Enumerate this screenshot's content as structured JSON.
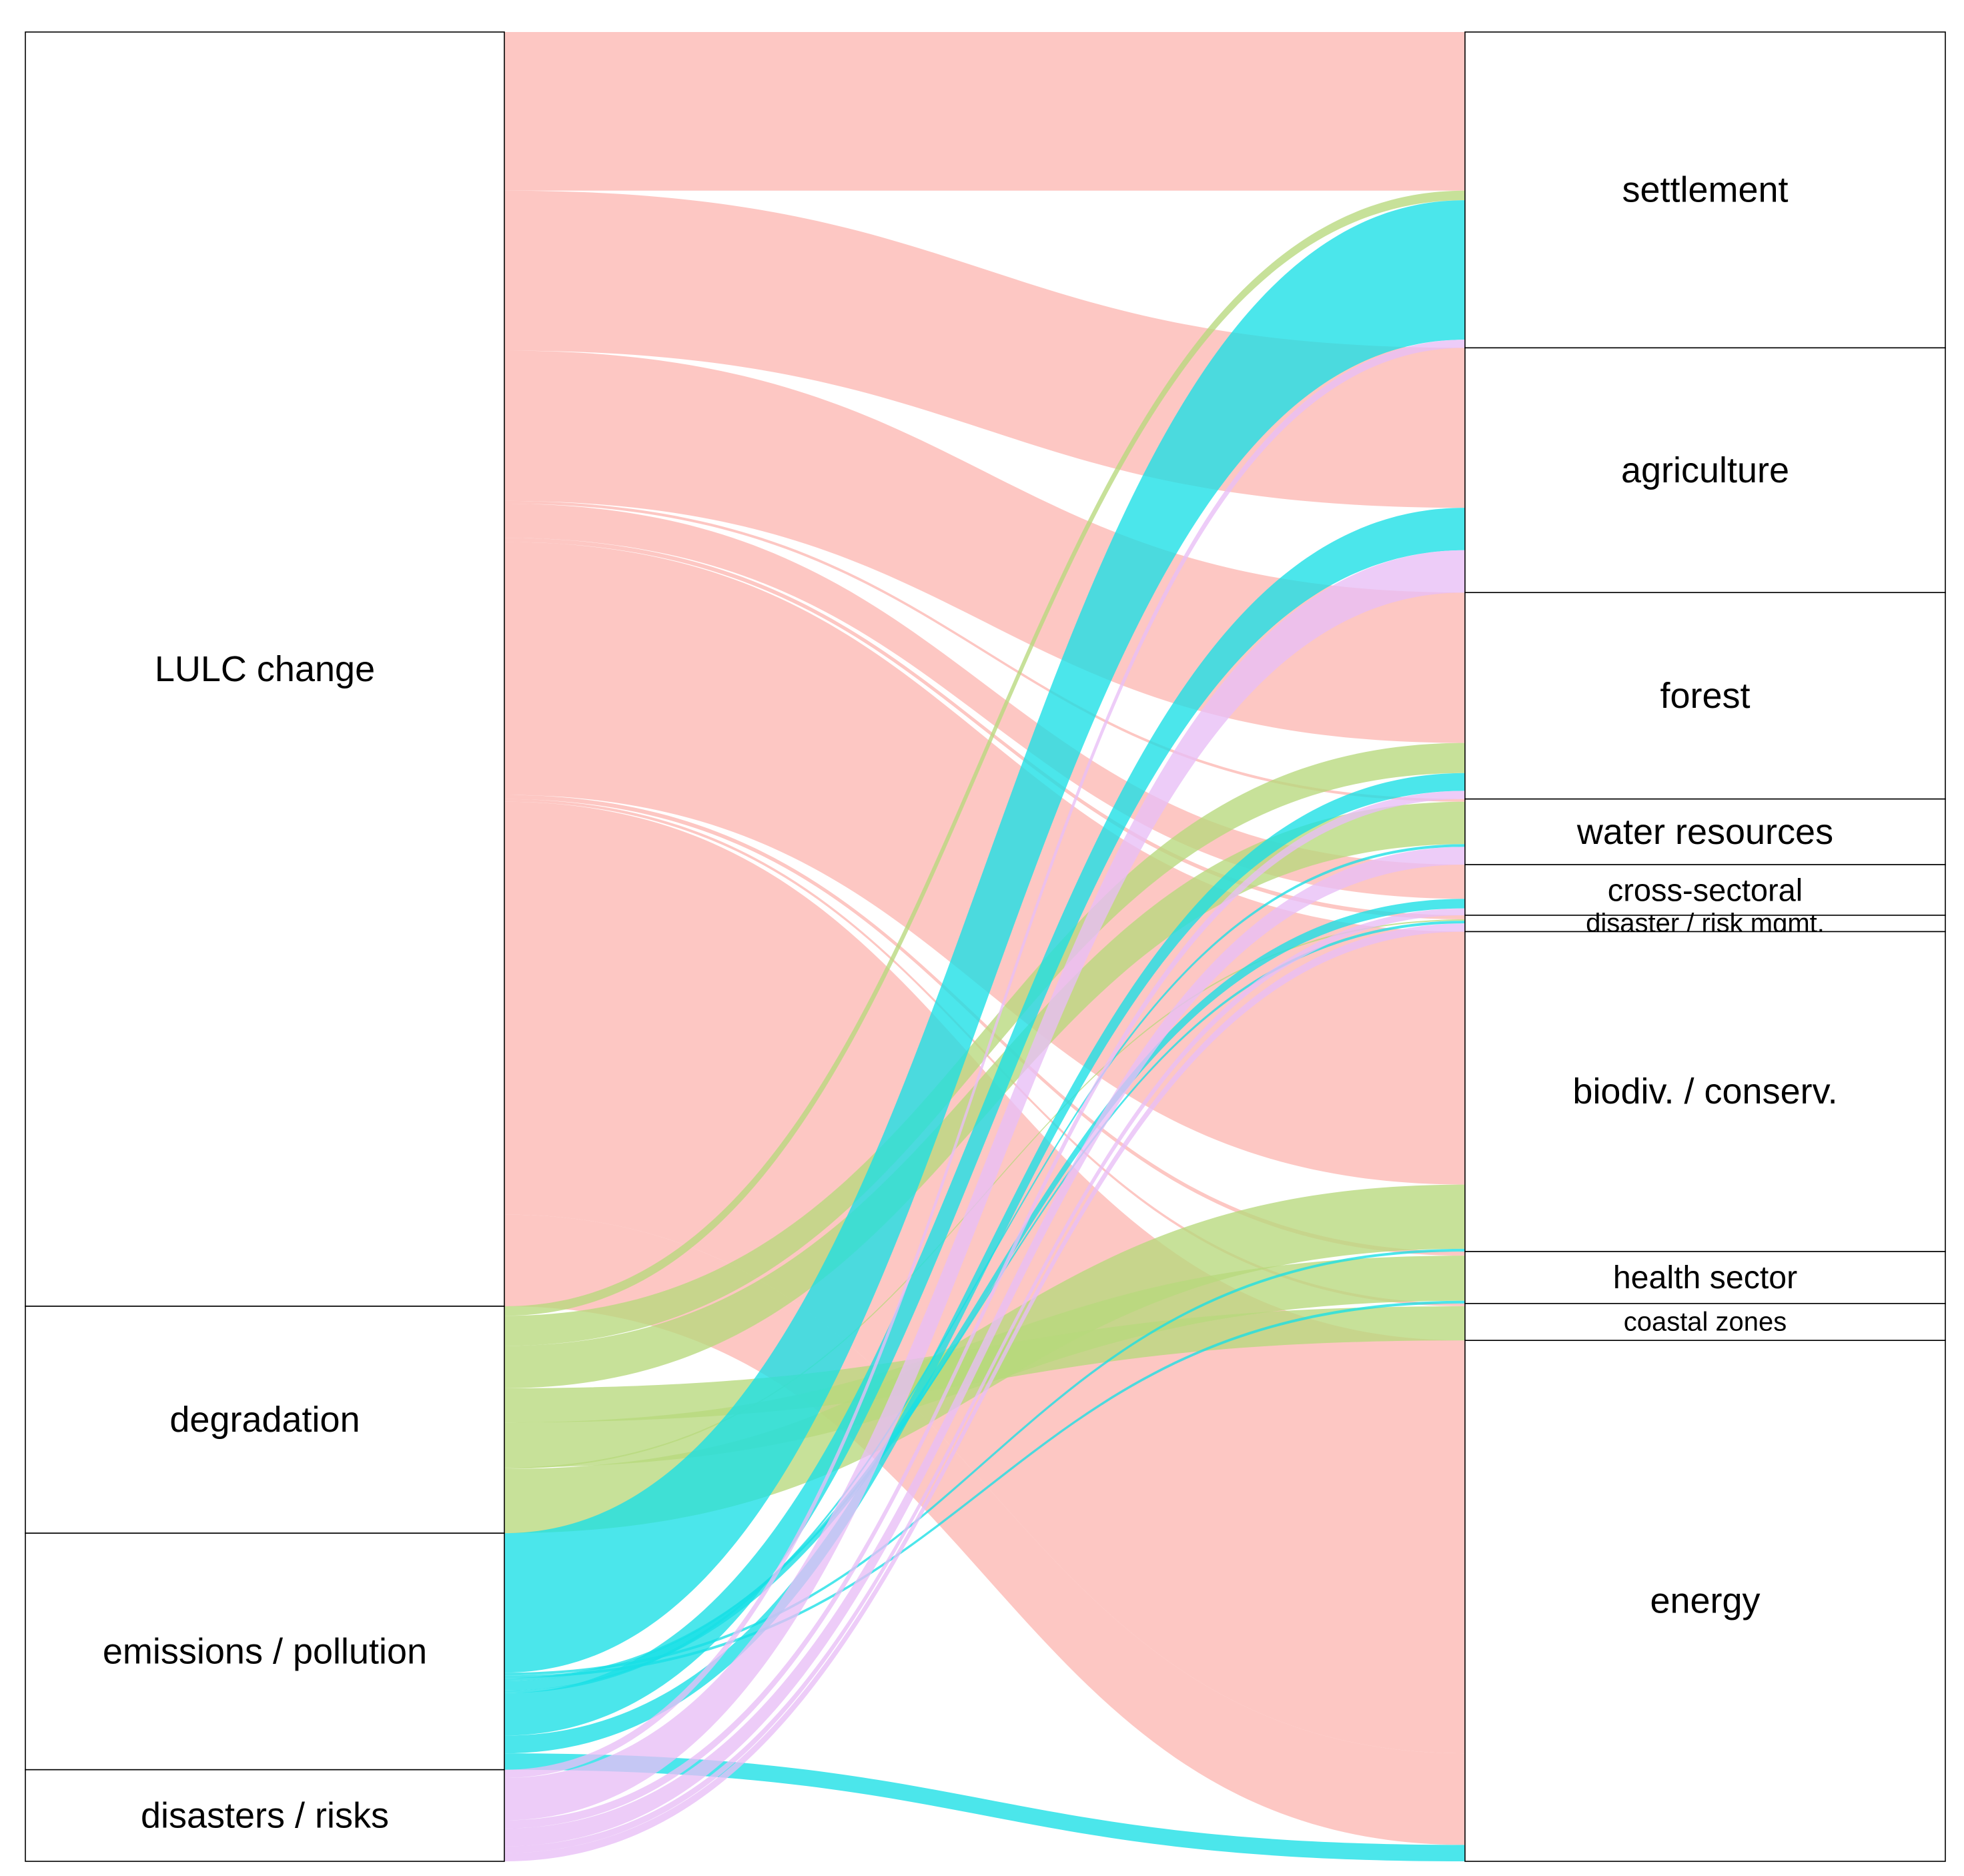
{
  "chart_data": {
    "type": "alluvial",
    "title": "",
    "source_nodes": [
      {
        "name": "LULC change",
        "color": "#F8766D"
      },
      {
        "name": "degradation",
        "color": "#7CAE00"
      },
      {
        "name": "emissions / pollution",
        "color": "#00C0CE"
      },
      {
        "name": "disasters / risks",
        "color": "#D98BF5"
      }
    ],
    "target_nodes": [
      {
        "name": "settlement"
      },
      {
        "name": "agriculture"
      },
      {
        "name": "forest"
      },
      {
        "name": "water resources"
      },
      {
        "name": "cross-sectoral"
      },
      {
        "name": "disaster / risk mgmt."
      },
      {
        "name": "biodiv. / conserv."
      },
      {
        "name": "health sector"
      },
      {
        "name": "coastal zones"
      },
      {
        "name": "energy"
      }
    ],
    "flow_colors": {
      "LULC change": "#FDB7B2",
      "degradation": "#B7D97C",
      "emissions / pollution": "#18DFE5",
      "disasters / risks": "#E8BEF6"
    },
    "flows": [
      {
        "source": "LULC change",
        "target": "settlement",
        "value": 11.6
      },
      {
        "source": "LULC change",
        "target": "agriculture",
        "value": 11.7
      },
      {
        "source": "LULC change",
        "target": "forest",
        "value": 11.0
      },
      {
        "source": "LULC change",
        "target": "water resources",
        "value": 0.2
      },
      {
        "source": "LULC change",
        "target": "cross-sectoral",
        "value": 2.5
      },
      {
        "source": "LULC change",
        "target": "disaster / risk mgmt.",
        "value": 0.3
      },
      {
        "source": "LULC change",
        "target": "biodiv. / conserv.",
        "value": 18.5
      },
      {
        "source": "LULC change",
        "target": "health sector",
        "value": 0.3
      },
      {
        "source": "LULC change",
        "target": "coastal zones",
        "value": 0.2
      },
      {
        "source": "LULC change",
        "target": "energy",
        "value": 30.2
      },
      {
        "source": "LULC change",
        "target": "energy",
        "value": 6.7
      },
      {
        "source": "degradation",
        "target": "settlement",
        "value": 0.7
      },
      {
        "source": "degradation",
        "target": "forest",
        "value": 2.2
      },
      {
        "source": "degradation",
        "target": "water resources",
        "value": 3.1
      },
      {
        "source": "degradation",
        "target": "coastal zones",
        "value": 2.5
      },
      {
        "source": "degradation",
        "target": "health sector",
        "value": 3.3
      },
      {
        "source": "degradation",
        "target": "disaster / risk mgmt.",
        "value": 0.1
      },
      {
        "source": "degradation",
        "target": "biodiv. / conserv.",
        "value": 4.7
      },
      {
        "source": "emissions / pollution",
        "target": "settlement",
        "value": 10.2
      },
      {
        "source": "emissions / pollution",
        "target": "biodiv. / conserv.",
        "value": 0.2
      },
      {
        "source": "emissions / pollution",
        "target": "health sector",
        "value": 0.2
      },
      {
        "source": "emissions / pollution",
        "target": "disaster / risk mgmt.",
        "value": 0.2
      },
      {
        "source": "emissions / pollution",
        "target": "cross-sectoral",
        "value": 0.7
      },
      {
        "source": "emissions / pollution",
        "target": "water resources",
        "value": 0.2
      },
      {
        "source": "emissions / pollution",
        "target": "agriculture",
        "value": 3.1
      },
      {
        "source": "emissions / pollution",
        "target": "forest",
        "value": 1.3
      },
      {
        "source": "emissions / pollution",
        "target": "energy",
        "value": 1.2
      },
      {
        "source": "disasters / risks",
        "target": "settlement",
        "value": 0.6
      },
      {
        "source": "disasters / risks",
        "target": "agriculture",
        "value": 3.1
      },
      {
        "source": "disasters / risks",
        "target": "forest",
        "value": 0.6
      },
      {
        "source": "disasters / risks",
        "target": "water resources",
        "value": 1.3
      },
      {
        "source": "disasters / risks",
        "target": "cross-sectoral",
        "value": 0.5
      },
      {
        "source": "disasters / risks",
        "target": "disaster / risk mgmt.",
        "value": 0.6
      }
    ]
  }
}
